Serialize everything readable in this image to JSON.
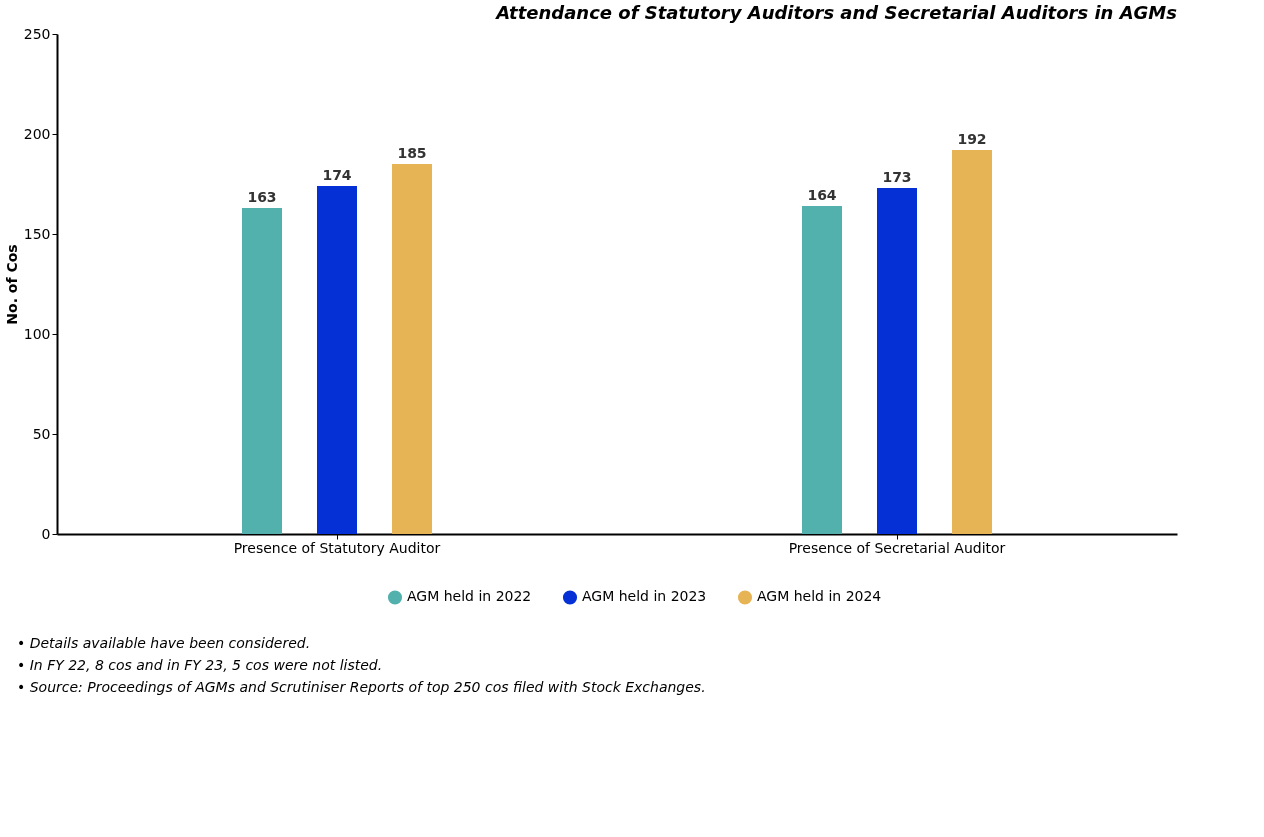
{
  "chart_data": {
    "type": "bar",
    "title": "Attendance of Statutory Auditors and Secretarial Auditors in AGMs",
    "ylabel": "No. of Cos",
    "categories": [
      "Presence of Statutory Auditor",
      "Presence of Secretarial Auditor"
    ],
    "series": [
      {
        "name": "AGM held in 2022",
        "color": "#52b1ad",
        "values": [
          163,
          164
        ]
      },
      {
        "name": "AGM held in 2023",
        "color": "#0430d6",
        "values": [
          174,
          173
        ]
      },
      {
        "name": "AGM held in 2024",
        "color": "#e6b455",
        "values": [
          185,
          192
        ]
      }
    ],
    "ylim": [
      0,
      250
    ],
    "yticks": [
      0,
      50,
      100,
      150,
      200,
      250
    ],
    "grid": false,
    "legend": "bottom",
    "data_labels": true,
    "annotations": [
      "• Details available have been considered.",
      "• In FY 22, 8 cos and in FY 23, 5 cos were not listed.",
      "• Source: Proceedings of AGMs and Scrutiniser Reports of top 250 cos filed with Stock Exchanges."
    ]
  }
}
